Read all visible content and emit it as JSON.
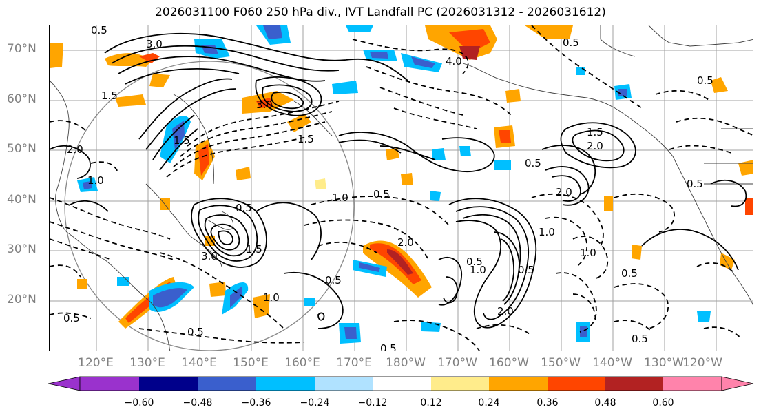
{
  "title": "2026031100 F060 250 hPa div., IVT Landfall PC (2026031312 - 2026031612)",
  "axes": {
    "lat_labels": [
      "70°N",
      "60°N",
      "50°N",
      "40°N",
      "30°N",
      "20°N"
    ],
    "lon_labels": [
      "120°E",
      "130°E",
      "140°E",
      "150°E",
      "160°E",
      "170°E",
      "180°W",
      "170°W",
      "160°W",
      "150°W",
      "140°W",
      "130°W",
      "120°W"
    ]
  },
  "colorbar": {
    "ticks": [
      "−0.60",
      "−0.48",
      "−0.36",
      "−0.24",
      "−0.12",
      "0.12",
      "0.24",
      "0.36",
      "0.48",
      "0.60"
    ],
    "colors": [
      "#9a32cd",
      "#00008b",
      "#3a5fcd",
      "#00bfff",
      "#b0e2ff",
      "#ffffff",
      "#ffec8b",
      "#ffa500",
      "#ff4500",
      "#b22222",
      "#ff83ab"
    ]
  },
  "contour_labels": [
    "1.5",
    "3.0",
    "0.5",
    "1.5",
    "2.0",
    "1.0",
    "0.5",
    "1.0",
    "2.0",
    "0.5",
    "1.5",
    "0.5",
    "3.0",
    "1.0",
    "0.5",
    "0.5",
    "2.0",
    "3.0",
    "1.5",
    "1.0",
    "0.5",
    "0.5",
    "2.0",
    "1.0",
    "0.5",
    "0.5",
    "0.5",
    "1.0",
    "0.5",
    "4.0",
    "0.5",
    "1.5",
    "2.0",
    "0.5",
    "0.5"
  ],
  "colors": {
    "coast": "#404040",
    "grid": "#a0a0a0",
    "range_circle": "#888888",
    "contour": "#000000"
  }
}
